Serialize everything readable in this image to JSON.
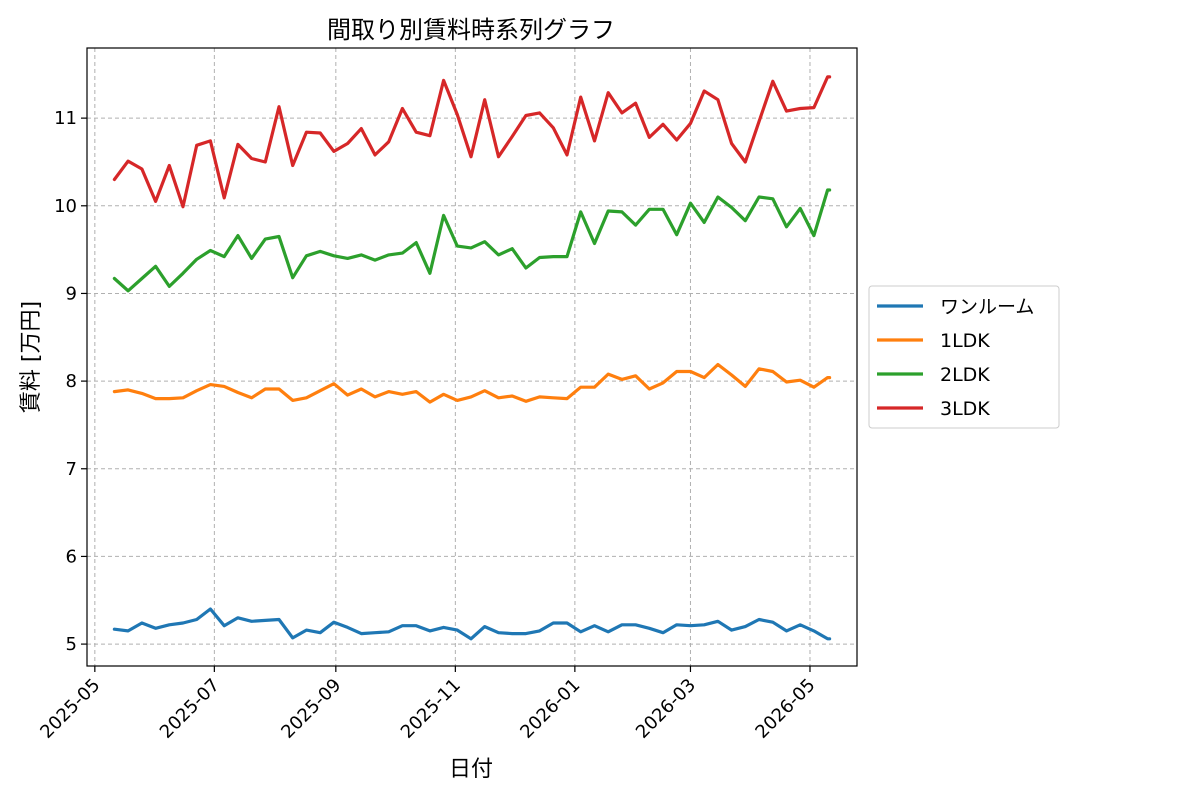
{
  "chart_data": {
    "type": "line",
    "title": "間取り別賃料時系列グラフ",
    "xlabel": "日付",
    "ylabel": "賃料 [万円]",
    "xlim": [
      "2025-04-27",
      "2026-05-25"
    ],
    "ylim": [
      4.75,
      11.8
    ],
    "grid": true,
    "legend_position": "outside-right",
    "x_ticks": [
      "2025-05",
      "2025-07",
      "2025-09",
      "2025-11",
      "2026-01",
      "2026-03",
      "2026-05"
    ],
    "y_ticks": [
      5,
      6,
      7,
      8,
      9,
      10,
      11
    ],
    "x": [
      "2025-05-11",
      "2025-05-18",
      "2025-05-25",
      "2025-06-01",
      "2025-06-08",
      "2025-06-15",
      "2025-06-22",
      "2025-06-29",
      "2025-07-06",
      "2025-07-13",
      "2025-07-20",
      "2025-07-27",
      "2025-08-03",
      "2025-08-10",
      "2025-08-17",
      "2025-08-24",
      "2025-08-31",
      "2025-09-07",
      "2025-09-14",
      "2025-09-21",
      "2025-09-28",
      "2025-10-05",
      "2025-10-12",
      "2025-10-19",
      "2025-10-26",
      "2025-11-02",
      "2025-11-09",
      "2025-11-16",
      "2025-11-23",
      "2025-11-30",
      "2025-12-07",
      "2025-12-14",
      "2025-12-21",
      "2025-12-28",
      "2026-01-04",
      "2026-01-11",
      "2026-01-18",
      "2026-01-25",
      "2026-02-01",
      "2026-02-08",
      "2026-02-15",
      "2026-02-22",
      "2026-03-01",
      "2026-03-08",
      "2026-03-15",
      "2026-03-22",
      "2026-03-29",
      "2026-04-05",
      "2026-04-12",
      "2026-04-19",
      "2026-04-26",
      "2026-05-03",
      "2026-05-10",
      "2026-05-11"
    ],
    "series": [
      {
        "name": "ワンルーム",
        "color": "#1f77b4",
        "values": [
          5.17,
          5.15,
          5.24,
          5.18,
          5.22,
          5.24,
          5.28,
          5.4,
          5.21,
          5.3,
          5.26,
          5.27,
          5.28,
          5.07,
          5.16,
          5.13,
          5.25,
          5.19,
          5.12,
          5.13,
          5.14,
          5.21,
          5.21,
          5.15,
          5.19,
          5.16,
          5.06,
          5.2,
          5.13,
          5.12,
          5.12,
          5.15,
          5.24,
          5.24,
          5.14,
          5.21,
          5.14,
          5.22,
          5.22,
          5.18,
          5.13,
          5.22,
          5.21,
          5.22,
          5.26,
          5.16,
          5.2,
          5.28,
          5.25,
          5.15,
          5.22,
          5.15,
          5.06,
          5.06
        ]
      },
      {
        "name": "1LDK",
        "color": "#ff7f0e",
        "values": [
          7.88,
          7.9,
          7.86,
          7.8,
          7.8,
          7.81,
          7.89,
          7.96,
          7.94,
          7.87,
          7.81,
          7.91,
          7.91,
          7.78,
          7.81,
          7.89,
          7.97,
          7.84,
          7.91,
          7.82,
          7.88,
          7.85,
          7.88,
          7.76,
          7.85,
          7.78,
          7.82,
          7.89,
          7.81,
          7.83,
          7.77,
          7.82,
          7.81,
          7.8,
          7.93,
          7.93,
          8.08,
          8.02,
          8.06,
          7.91,
          7.98,
          8.11,
          8.11,
          8.04,
          8.19,
          8.07,
          7.94,
          8.14,
          8.11,
          7.99,
          8.01,
          7.93,
          8.04,
          8.04
        ]
      },
      {
        "name": "2LDK",
        "color": "#2ca02c",
        "values": [
          9.17,
          9.03,
          9.17,
          9.31,
          9.08,
          9.23,
          9.39,
          9.49,
          9.42,
          9.66,
          9.4,
          9.62,
          9.65,
          9.18,
          9.43,
          9.48,
          9.43,
          9.4,
          9.44,
          9.38,
          9.44,
          9.46,
          9.58,
          9.23,
          9.89,
          9.54,
          9.52,
          9.59,
          9.44,
          9.51,
          9.29,
          9.41,
          9.42,
          9.42,
          9.93,
          9.57,
          9.94,
          9.93,
          9.78,
          9.96,
          9.96,
          9.67,
          10.03,
          9.81,
          10.1,
          9.98,
          9.83,
          10.1,
          10.08,
          9.76,
          9.97,
          9.66,
          10.18,
          10.18
        ]
      },
      {
        "name": "3LDK",
        "color": "#d62728",
        "values": [
          10.3,
          10.51,
          10.42,
          10.05,
          10.46,
          9.99,
          10.69,
          10.74,
          10.09,
          10.7,
          10.54,
          10.5,
          11.13,
          10.46,
          10.84,
          10.83,
          10.62,
          10.71,
          10.88,
          10.58,
          10.73,
          11.11,
          10.84,
          10.8,
          11.43,
          11.04,
          10.56,
          11.21,
          10.56,
          10.79,
          11.03,
          11.06,
          10.89,
          10.58,
          11.24,
          10.74,
          11.29,
          11.06,
          11.17,
          10.78,
          10.93,
          10.75,
          10.94,
          11.31,
          11.21,
          10.71,
          10.5,
          10.96,
          11.42,
          11.08,
          11.11,
          11.12,
          11.47,
          11.47
        ]
      }
    ]
  }
}
